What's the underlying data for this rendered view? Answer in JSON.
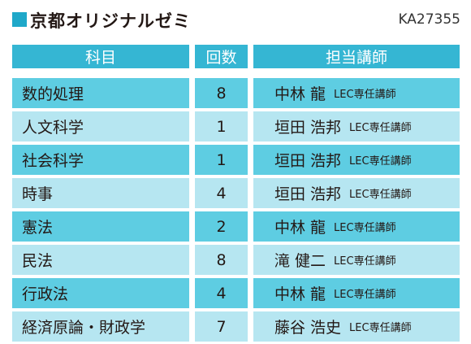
{
  "header": {
    "title": "京都オリジナルゼミ",
    "code": "KA27355"
  },
  "table": {
    "columns": [
      "科目",
      "回数",
      "担当講師"
    ],
    "rows": [
      {
        "subject": "数的処理",
        "count": 8,
        "teacher": "中林 龍",
        "role": "LEC専任講師"
      },
      {
        "subject": "人文科学",
        "count": 1,
        "teacher": "垣田 浩邦",
        "role": "LEC専任講師"
      },
      {
        "subject": "社会科学",
        "count": 1,
        "teacher": "垣田 浩邦",
        "role": "LEC専任講師"
      },
      {
        "subject": "時事",
        "count": 4,
        "teacher": "垣田 浩邦",
        "role": "LEC専任講師"
      },
      {
        "subject": "憲法",
        "count": 2,
        "teacher": "中林 龍",
        "role": "LEC専任講師"
      },
      {
        "subject": "民法",
        "count": 8,
        "teacher": "滝 健二",
        "role": "LEC専任講師"
      },
      {
        "subject": "行政法",
        "count": 4,
        "teacher": "中林 龍",
        "role": "LEC専任講師"
      },
      {
        "subject": "経済原論・財政学",
        "count": 7,
        "teacher": "藤谷 浩史",
        "role": "LEC専任講師"
      }
    ]
  }
}
